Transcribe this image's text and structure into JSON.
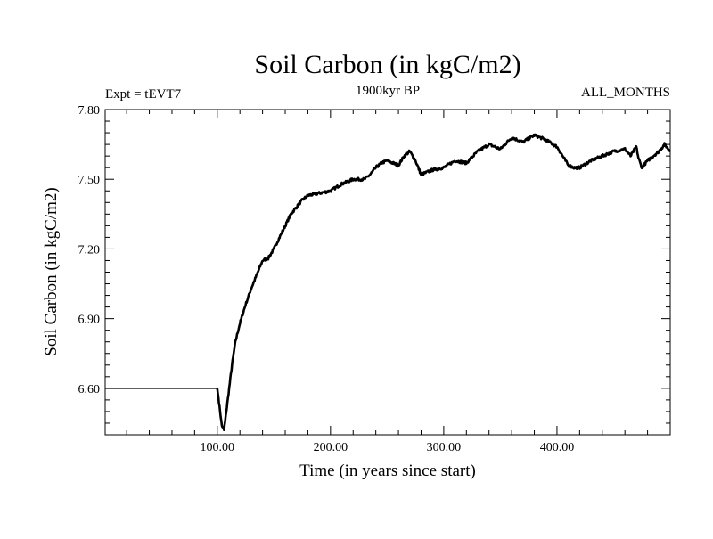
{
  "chart_data": {
    "type": "line",
    "title": "Soil Carbon (in kgC/m2)",
    "subtitle_left": "Expt = tEVT7",
    "subtitle_center": "1900kyr BP",
    "subtitle_right": "ALL_MONTHS",
    "xlabel": "Time (in years since start)",
    "ylabel": "Soil Carbon (in kgC/m2)",
    "xlim": [
      1,
      500
    ],
    "ylim": [
      6.4,
      7.8
    ],
    "x_ticks": [
      100,
      200,
      300,
      400
    ],
    "x_tick_labels": [
      "100.00",
      "200.00",
      "300.00",
      "400.00"
    ],
    "y_ticks": [
      6.6,
      6.9,
      7.2,
      7.5,
      7.8
    ],
    "y_tick_labels": [
      "6.60",
      "6.90",
      "7.20",
      "7.50",
      "7.80"
    ],
    "grid": false,
    "series": [
      {
        "name": "Soil Carbon",
        "color": "#000000",
        "x": [
          1,
          100,
          102,
          104,
          106,
          108,
          110,
          113,
          116,
          120,
          125,
          130,
          135,
          140,
          145,
          150,
          155,
          160,
          165,
          170,
          175,
          180,
          190,
          200,
          210,
          220,
          225,
          230,
          235,
          240,
          245,
          250,
          255,
          260,
          265,
          270,
          275,
          280,
          290,
          300,
          310,
          320,
          330,
          340,
          350,
          360,
          370,
          380,
          390,
          400,
          410,
          415,
          420,
          430,
          440,
          450,
          460,
          465,
          470,
          472,
          475,
          480,
          490,
          495,
          500
        ],
        "y": [
          6.6,
          6.6,
          6.52,
          6.44,
          6.42,
          6.5,
          6.58,
          6.7,
          6.8,
          6.88,
          6.96,
          7.03,
          7.09,
          7.15,
          7.16,
          7.2,
          7.25,
          7.3,
          7.35,
          7.38,
          7.41,
          7.43,
          7.44,
          7.45,
          7.48,
          7.5,
          7.5,
          7.5,
          7.52,
          7.55,
          7.57,
          7.58,
          7.57,
          7.56,
          7.6,
          7.62,
          7.58,
          7.52,
          7.54,
          7.55,
          7.58,
          7.57,
          7.62,
          7.65,
          7.63,
          7.68,
          7.66,
          7.69,
          7.67,
          7.64,
          7.56,
          7.55,
          7.55,
          7.58,
          7.6,
          7.62,
          7.63,
          7.6,
          7.64,
          7.59,
          7.55,
          7.58,
          7.62,
          7.65,
          7.62
        ]
      }
    ]
  }
}
